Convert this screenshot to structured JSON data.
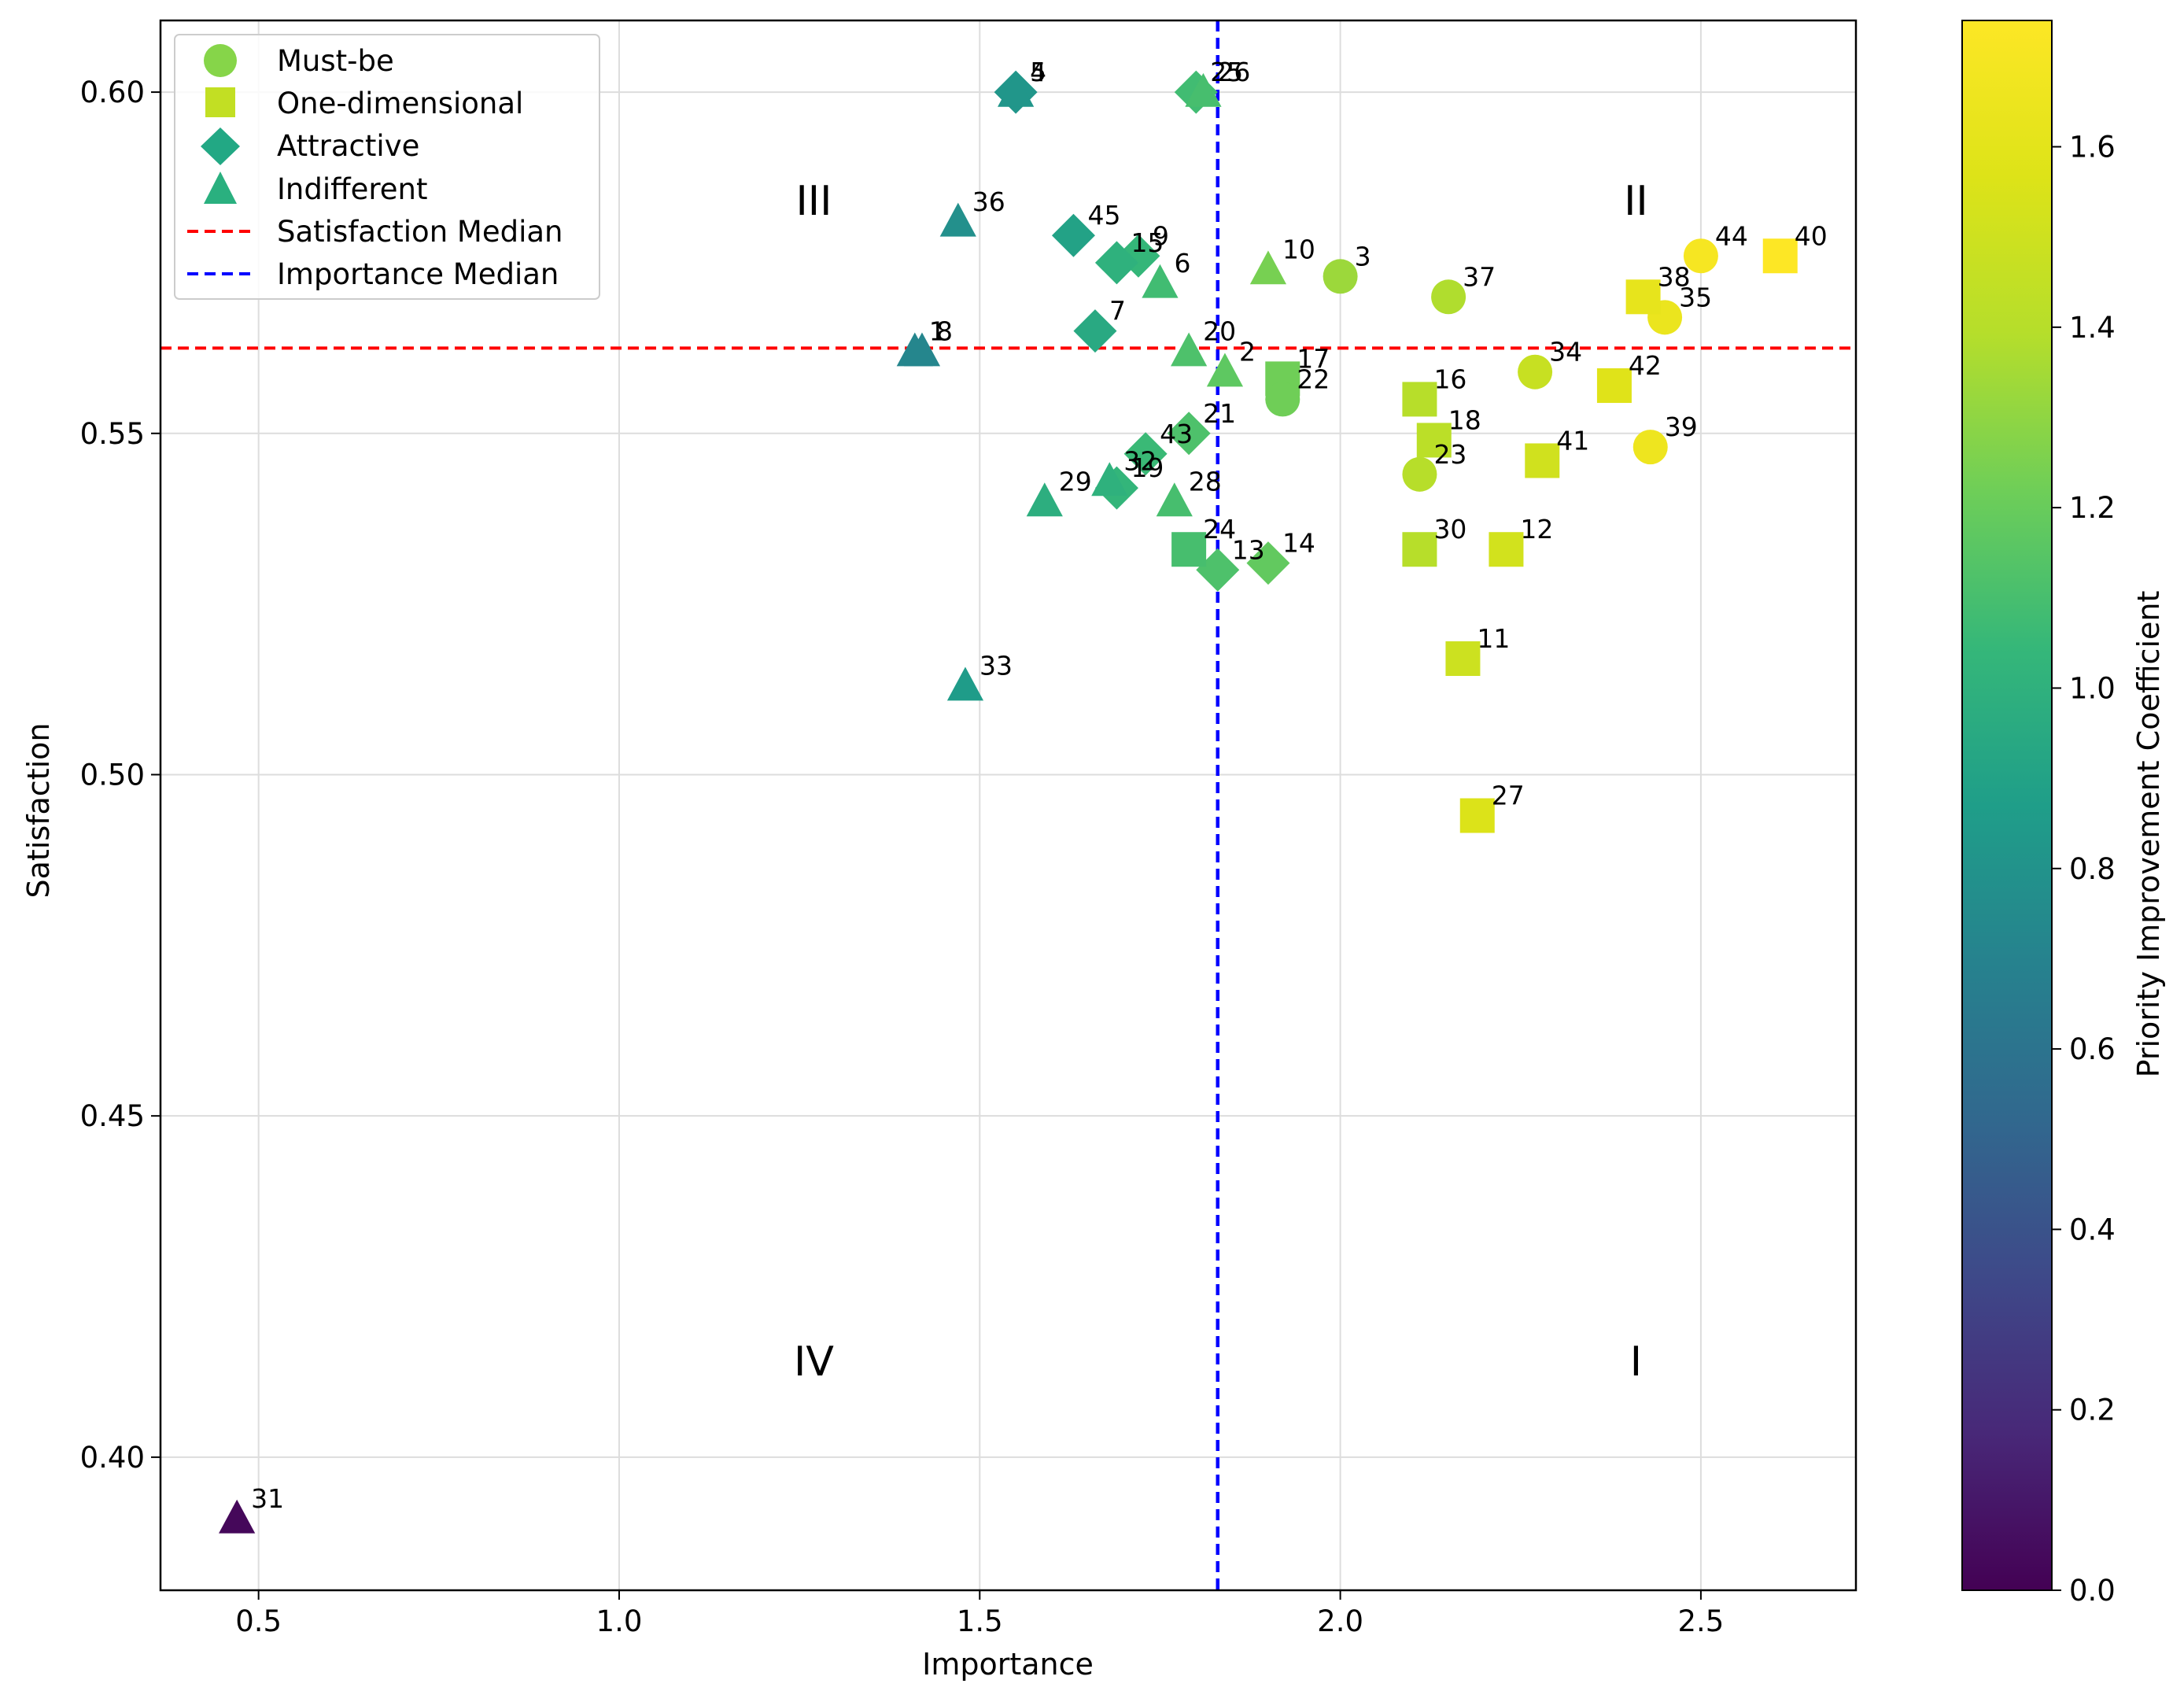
{
  "chart_data": {
    "type": "scatter",
    "xlabel": "Importance",
    "ylabel": "Satisfaction",
    "xlim": [
      0.364,
      2.715
    ],
    "ylim": [
      0.3805,
      0.6105
    ],
    "xticks": [
      0.5,
      1.0,
      1.5,
      2.0,
      2.5
    ],
    "xtick_labels": [
      "0.5",
      "1.0",
      "1.5",
      "2.0",
      "2.5"
    ],
    "yticks": [
      0.4,
      0.45,
      0.5,
      0.55,
      0.6
    ],
    "ytick_labels": [
      "0.40",
      "0.45",
      "0.50",
      "0.55",
      "0.60"
    ],
    "grid": true,
    "legend_position": "top-left",
    "legend": [
      {
        "label": "Must-be",
        "marker": "circle",
        "color": "#86d549"
      },
      {
        "label": "One-dimensional",
        "marker": "square",
        "color": "#c2df23"
      },
      {
        "label": "Attractive",
        "marker": "diamond",
        "color": "#22a884"
      },
      {
        "label": "Indifferent",
        "marker": "triangle",
        "color": "#2ab07f"
      },
      {
        "label": "Satisfaction Median",
        "marker": "line",
        "color": "#ff0000",
        "style": "dashed"
      },
      {
        "label": "Importance Median",
        "marker": "line",
        "color": "#0000ff",
        "style": "dashed"
      }
    ],
    "satisfaction_median": 0.5625,
    "importance_median": 1.83,
    "quadrant_labels": [
      {
        "label": "III",
        "x": 1.27,
        "y": 0.582
      },
      {
        "label": "II",
        "x": 2.41,
        "y": 0.582
      },
      {
        "label": "IV",
        "x": 1.27,
        "y": 0.412
      },
      {
        "label": "I",
        "x": 2.41,
        "y": 0.412
      }
    ],
    "colorbar": {
      "label": "Priority Improvement Coefficient",
      "colormap": "viridis",
      "vmin": 0.0,
      "vmax": 1.74,
      "ticks": [
        0.0,
        0.2,
        0.4,
        0.6,
        0.8,
        1.0,
        1.2,
        1.4,
        1.6
      ],
      "tick_labels": [
        "0.0",
        "0.2",
        "0.4",
        "0.6",
        "0.8",
        "1.0",
        "1.2",
        "1.4",
        "1.6"
      ]
    },
    "points": [
      {
        "id": "1",
        "x": 1.41,
        "y": 0.562,
        "type": "Indifferent",
        "pic": 0.72
      },
      {
        "id": "2",
        "x": 1.84,
        "y": 0.559,
        "type": "Indifferent",
        "pic": 1.17
      },
      {
        "id": "3",
        "x": 2.0,
        "y": 0.573,
        "type": "Must-be",
        "pic": 1.33
      },
      {
        "id": "4",
        "x": 1.55,
        "y": 0.6,
        "type": "Attractive",
        "pic": 0.82
      },
      {
        "id": "5",
        "x": 1.55,
        "y": 0.6,
        "type": "Indifferent",
        "pic": 0.82
      },
      {
        "id": "6",
        "x": 1.75,
        "y": 0.572,
        "type": "Indifferent",
        "pic": 1.08
      },
      {
        "id": "7",
        "x": 1.66,
        "y": 0.565,
        "type": "Attractive",
        "pic": 0.95
      },
      {
        "id": "8",
        "x": 1.42,
        "y": 0.562,
        "type": "Indifferent",
        "pic": 0.72
      },
      {
        "id": "9",
        "x": 1.72,
        "y": 0.576,
        "type": "Attractive",
        "pic": 1.04
      },
      {
        "id": "10",
        "x": 1.9,
        "y": 0.574,
        "type": "Indifferent",
        "pic": 1.24
      },
      {
        "id": "11",
        "x": 2.17,
        "y": 0.517,
        "type": "One-dimensional",
        "pic": 1.49
      },
      {
        "id": "12",
        "x": 2.23,
        "y": 0.533,
        "type": "One-dimensional",
        "pic": 1.52
      },
      {
        "id": "13",
        "x": 1.83,
        "y": 0.53,
        "type": "Attractive",
        "pic": 1.12
      },
      {
        "id": "14",
        "x": 1.9,
        "y": 0.531,
        "type": "Attractive",
        "pic": 1.18
      },
      {
        "id": "15",
        "x": 1.69,
        "y": 0.575,
        "type": "Attractive",
        "pic": 1.0
      },
      {
        "id": "16",
        "x": 2.11,
        "y": 0.555,
        "type": "One-dimensional",
        "pic": 1.4
      },
      {
        "id": "17",
        "x": 1.92,
        "y": 0.558,
        "type": "One-dimensional",
        "pic": 1.22
      },
      {
        "id": "18",
        "x": 2.13,
        "y": 0.549,
        "type": "One-dimensional",
        "pic": 1.42
      },
      {
        "id": "19",
        "x": 1.69,
        "y": 0.542,
        "type": "Attractive",
        "pic": 1.03
      },
      {
        "id": "20",
        "x": 1.79,
        "y": 0.562,
        "type": "Indifferent",
        "pic": 1.12
      },
      {
        "id": "21",
        "x": 1.79,
        "y": 0.55,
        "type": "Attractive",
        "pic": 1.12
      },
      {
        "id": "22",
        "x": 1.92,
        "y": 0.555,
        "type": "Must-be",
        "pic": 1.22
      },
      {
        "id": "23",
        "x": 2.11,
        "y": 0.544,
        "type": "Must-be",
        "pic": 1.4
      },
      {
        "id": "24",
        "x": 1.79,
        "y": 0.533,
        "type": "One-dimensional",
        "pic": 1.1
      },
      {
        "id": "25",
        "x": 1.8,
        "y": 0.6,
        "type": "Attractive",
        "pic": 1.08
      },
      {
        "id": "26",
        "x": 1.81,
        "y": 0.6,
        "type": "Indifferent",
        "pic": 1.1
      },
      {
        "id": "27",
        "x": 2.19,
        "y": 0.494,
        "type": "One-dimensional",
        "pic": 1.56
      },
      {
        "id": "28",
        "x": 1.77,
        "y": 0.54,
        "type": "Indifferent",
        "pic": 1.1
      },
      {
        "id": "29",
        "x": 1.59,
        "y": 0.54,
        "type": "Indifferent",
        "pic": 0.98
      },
      {
        "id": "30",
        "x": 2.11,
        "y": 0.533,
        "type": "One-dimensional",
        "pic": 1.4
      },
      {
        "id": "31",
        "x": 0.47,
        "y": 0.391,
        "type": "Indifferent",
        "pic": 0.03
      },
      {
        "id": "32",
        "x": 1.68,
        "y": 0.543,
        "type": "Indifferent",
        "pic": 1.0
      },
      {
        "id": "33",
        "x": 1.48,
        "y": 0.513,
        "type": "Indifferent",
        "pic": 0.86
      },
      {
        "id": "34",
        "x": 2.27,
        "y": 0.559,
        "type": "Must-be",
        "pic": 1.47
      },
      {
        "id": "35",
        "x": 2.45,
        "y": 0.567,
        "type": "Must-be",
        "pic": 1.64
      },
      {
        "id": "36",
        "x": 1.47,
        "y": 0.581,
        "type": "Indifferent",
        "pic": 0.78
      },
      {
        "id": "37",
        "x": 2.15,
        "y": 0.57,
        "type": "Must-be",
        "pic": 1.38
      },
      {
        "id": "38",
        "x": 2.42,
        "y": 0.57,
        "type": "One-dimensional",
        "pic": 1.62
      },
      {
        "id": "39",
        "x": 2.43,
        "y": 0.548,
        "type": "Must-be",
        "pic": 1.66
      },
      {
        "id": "40",
        "x": 2.61,
        "y": 0.576,
        "type": "One-dimensional",
        "pic": 1.74
      },
      {
        "id": "41",
        "x": 2.28,
        "y": 0.546,
        "type": "One-dimensional",
        "pic": 1.51
      },
      {
        "id": "42",
        "x": 2.38,
        "y": 0.557,
        "type": "One-dimensional",
        "pic": 1.58
      },
      {
        "id": "43",
        "x": 1.73,
        "y": 0.547,
        "type": "Attractive",
        "pic": 1.06
      },
      {
        "id": "44",
        "x": 2.5,
        "y": 0.576,
        "type": "Must-be",
        "pic": 1.7
      },
      {
        "id": "45",
        "x": 1.63,
        "y": 0.579,
        "type": "Attractive",
        "pic": 0.9
      }
    ]
  }
}
